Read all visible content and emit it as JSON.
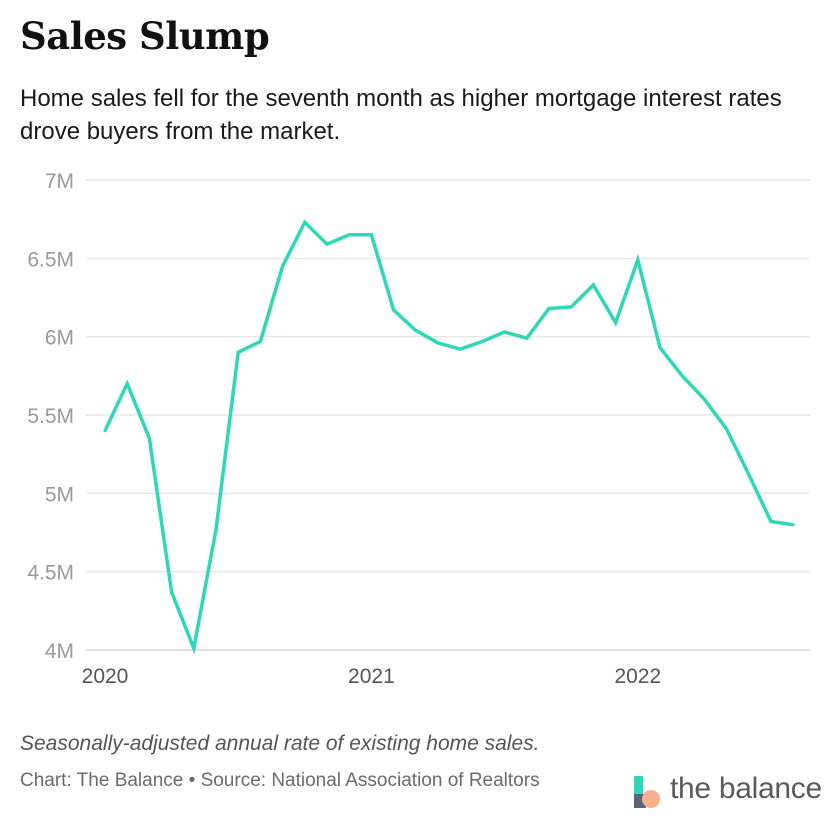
{
  "title": "Sales Slump",
  "subtitle": "Home sales fell for the seventh month as higher mortgage interest rates drove buyers from the market.",
  "note": "Seasonally-adjusted annual rate of existing home sales.",
  "credit": "Chart: The Balance • Source: National Association of Realtors",
  "logo": {
    "text": "the balance",
    "colors": [
      "#2ed8b6",
      "#f7b08a",
      "#5b6577"
    ]
  },
  "chart_data": {
    "type": "line",
    "title": "",
    "xlabel": "",
    "ylabel": "",
    "ylim": [
      4000000,
      7000000
    ],
    "yticks": [
      4000000,
      4500000,
      5000000,
      5500000,
      6000000,
      6500000,
      7000000
    ],
    "ytick_labels": [
      "4M",
      "4.5M",
      "5M",
      "5.5M",
      "6M",
      "6.5M",
      "7M"
    ],
    "xticks": [
      "2020-01",
      "2021-01",
      "2022-01"
    ],
    "xtick_labels": [
      "2020",
      "2021",
      "2022"
    ],
    "grid": true,
    "color": "#2ed8b6",
    "x": [
      "2020-01",
      "2020-02",
      "2020-03",
      "2020-04",
      "2020-05",
      "2020-06",
      "2020-07",
      "2020-08",
      "2020-09",
      "2020-10",
      "2020-11",
      "2020-12",
      "2021-01",
      "2021-02",
      "2021-03",
      "2021-04",
      "2021-05",
      "2021-06",
      "2021-07",
      "2021-08",
      "2021-09",
      "2021-10",
      "2021-11",
      "2021-12",
      "2022-01",
      "2022-02",
      "2022-03",
      "2022-04",
      "2022-05",
      "2022-06",
      "2022-07",
      "2022-08"
    ],
    "values": [
      5400000,
      5700000,
      5350000,
      4370000,
      4010000,
      4770000,
      5900000,
      5970000,
      6450000,
      6730000,
      6590000,
      6650000,
      6650000,
      6170000,
      6040000,
      5960000,
      5920000,
      5970000,
      6030000,
      5990000,
      6180000,
      6190000,
      6330000,
      6090000,
      6490000,
      5930000,
      5750000,
      5600000,
      5410000,
      5120000,
      4820000,
      4800000
    ]
  }
}
